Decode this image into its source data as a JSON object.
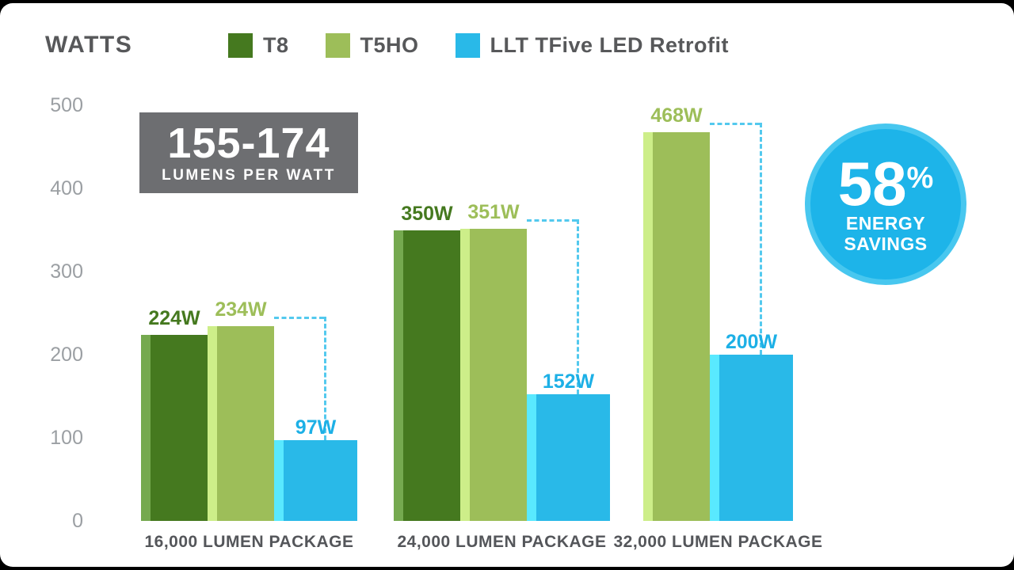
{
  "header": {
    "title": "WATTS",
    "legend": [
      {
        "label": "T8",
        "color": "#45791f"
      },
      {
        "label": "T5HO",
        "color": "#9dbe59"
      },
      {
        "label": "LLT TFive LED Retrofit",
        "color": "#29b9e8"
      }
    ]
  },
  "badges": {
    "efficacy": {
      "value": "155-174",
      "caption": "LUMENS PER WATT",
      "bg": "#6d6e71"
    },
    "savings": {
      "value": "58",
      "unit": "%",
      "line1": "ENERGY",
      "line2": "SAVINGS",
      "bg": "#1db4e9"
    }
  },
  "chart_data": {
    "type": "bar",
    "title": "WATTS",
    "ylabel": "Watts",
    "ylim": [
      0,
      500
    ],
    "yticks": [
      0,
      100,
      200,
      300,
      400,
      500
    ],
    "grid": false,
    "legend_position": "top",
    "categories": [
      "16,000 LUMEN PACKAGE",
      "24,000 LUMEN PACKAGE",
      "32,000 LUMEN PACKAGE"
    ],
    "series": [
      {
        "name": "T8",
        "color": "#45791f",
        "values": [
          224,
          350,
          null
        ],
        "labels": [
          "224W",
          "350W",
          null
        ]
      },
      {
        "name": "T5HO",
        "color": "#9dbe59",
        "values": [
          234,
          351,
          468
        ],
        "labels": [
          "234W",
          "351W",
          "468W"
        ]
      },
      {
        "name": "LLT TFive LED Retrofit",
        "color": "#1db0e6",
        "values": [
          97,
          152,
          200
        ],
        "labels": [
          "97W",
          "152W",
          "200W"
        ]
      }
    ],
    "annotations": [
      "dashed drop lines from T5HO bar tops down to LED Retrofit bar tops"
    ]
  }
}
